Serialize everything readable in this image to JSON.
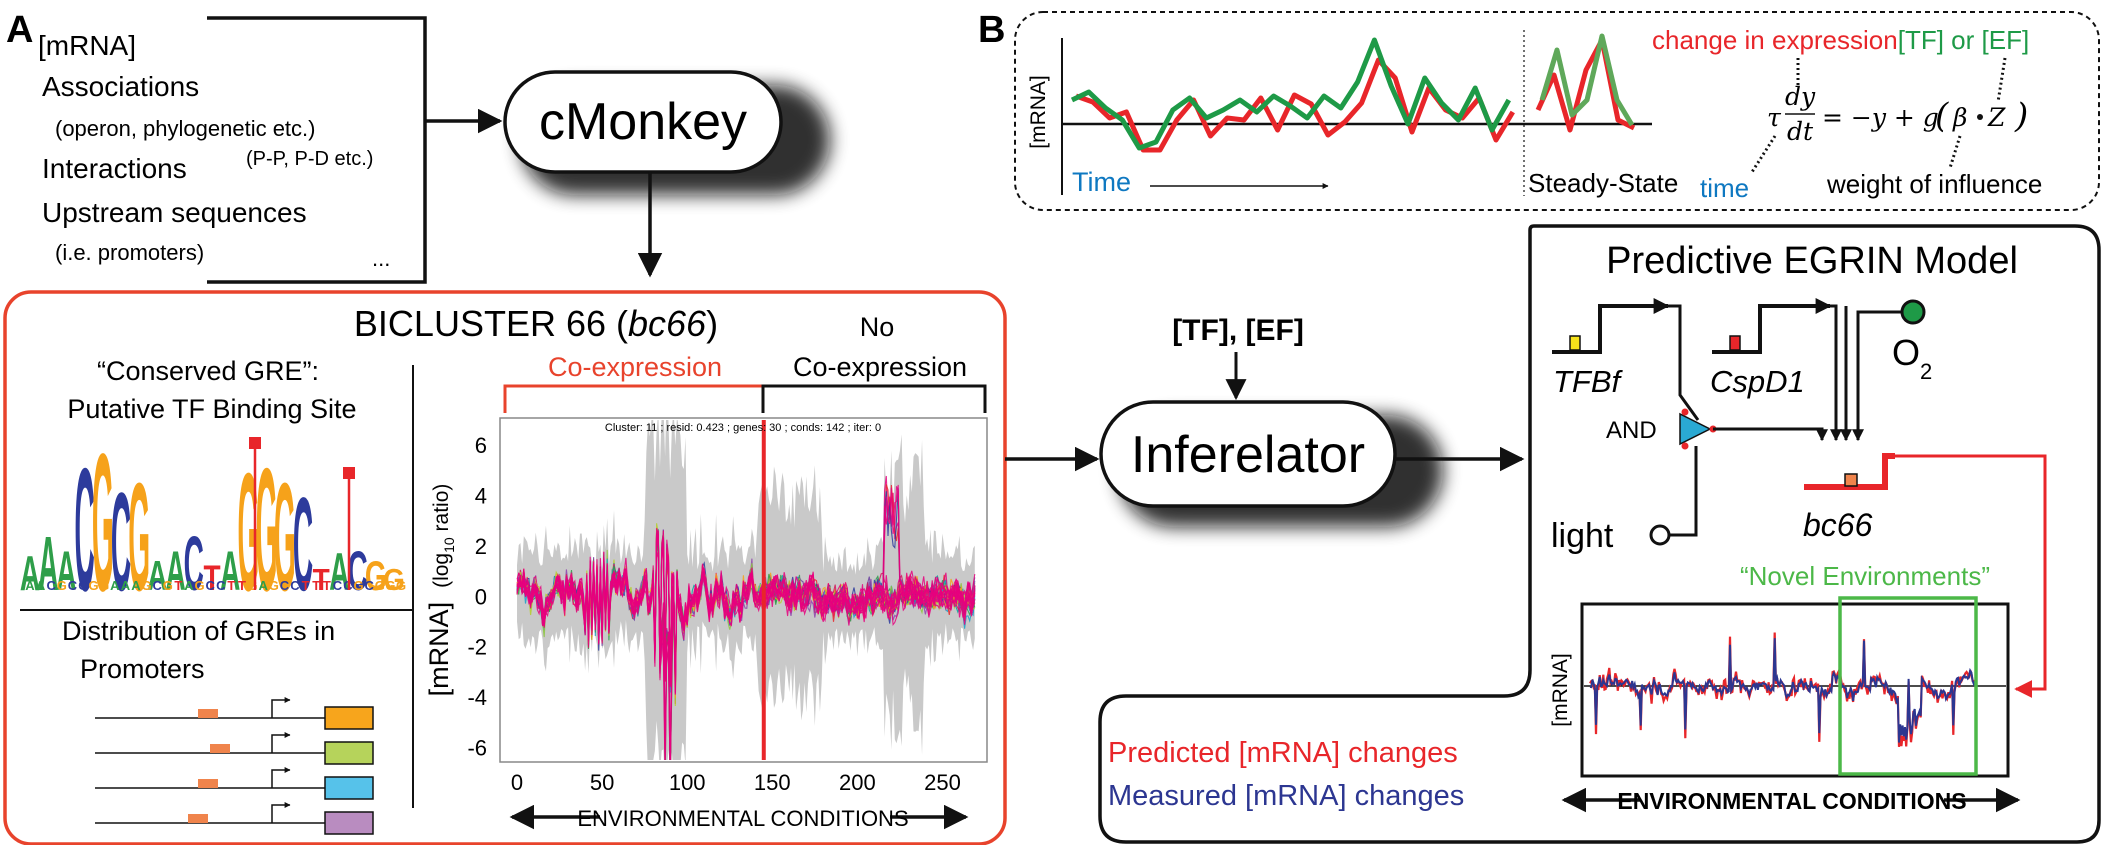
{
  "panel_a": {
    "letter": "A",
    "inputs": {
      "mrna": "[mRNA]",
      "associations": "Associations",
      "associations_detail": "(operon,  phylogenetic etc.)",
      "interactions": "Interactions",
      "interactions_detail": "(P-P, P-D etc.)",
      "upstream": "Upstream sequences",
      "upstream_detail": "(i.e. promoters)",
      "ellipsis": "..."
    },
    "cmonkey": "cMonkey",
    "bicluster": {
      "title_prefix": "BICLUSTER 66 (",
      "title_italic": "bc66",
      "title_suffix": ")",
      "gre_title_line1": "“Conserved GRE”:",
      "gre_title_line2": "Putative TF Binding Site",
      "dist_line1": "Distribution of GREs in",
      "dist_line2": "Promoters",
      "coexpression": "Co-expression",
      "no": "No",
      "no_coexpression": "Co-expression",
      "plot_header": "Cluster: 11 ; resid: 0.423 ; genes: 30 ; conds: 142 ; iter: 0",
      "ylabel_main": "[mRNA]",
      "ylabel_unit_open": "(log",
      "ylabel_unit_sub": "10",
      "ylabel_unit_close": " ratio)",
      "xlabel": "ENVIRONMENTAL CONDITIONS"
    },
    "logo_letters": [
      "A",
      "A",
      "A",
      "C",
      "G",
      "C",
      "G",
      "A",
      "A",
      "C",
      "T",
      "A",
      "G",
      "G",
      "G",
      "C",
      "T",
      "A",
      "C",
      "G",
      "G"
    ],
    "promoter_box_colors": [
      "#f7a51c",
      "#b6d35b",
      "#56c2ea",
      "#b98cc0"
    ],
    "gre_color": "#f0844c"
  },
  "panel_b": {
    "letter": "B",
    "top": {
      "ylabel": "[mRNA]",
      "time": "Time",
      "steady_state": "Steady-State",
      "change_label": "change in expression",
      "tf_label": "[TF]",
      "or_label": " or ",
      "ef_label": "[EF]",
      "time_note": "time",
      "weight_note": "weight of influence",
      "eq_tau": "τ",
      "eq_dy": "dy",
      "eq_dt": "dt",
      "eq_rhs": "= −y + g",
      "eq_beta": "β",
      "eq_z": "Z"
    },
    "inputs_label": "[TF], [EF]",
    "inferelator": "Inferelator",
    "model": {
      "title": "Predictive EGRIN Model",
      "tfbf": "TFBf",
      "cspd1": "CspD1",
      "o2": "O",
      "o2_sub": "2",
      "and_label": "AND",
      "light": "light",
      "bc66": "bc66",
      "novel": "“Novel Environments”",
      "plot_ylabel": "[mRNA]",
      "xlabel": "ENVIRONMENTAL CONDITIONS",
      "predicted": "Predicted [mRNA] changes",
      "measured": "Measured [mRNA] changes"
    },
    "colors": {
      "red": "#e8262a",
      "green": "#1e9a47",
      "blue": "#0e78c1",
      "navy": "#2c3691",
      "novel_green": "#4cb848",
      "and_gate": "#2aa9d3"
    }
  },
  "chart_data": {
    "type": "line",
    "title": "Cluster: 11 ; resid: 0.423 ; genes: 30 ; conds: 142 ; iter: 0",
    "xlabel": "ENVIRONMENTAL CONDITIONS",
    "ylabel": "[mRNA] (log10 ratio)",
    "xlim": [
      -10,
      275
    ],
    "ylim": [
      -6.5,
      7
    ],
    "x_ticks": [
      0,
      50,
      100,
      150,
      200,
      250
    ],
    "y_ticks": [
      -6,
      -4,
      -2,
      0,
      2,
      4,
      6
    ],
    "split_x": 145,
    "regions": [
      {
        "name": "Co-expression",
        "x_range": [
          -10,
          145
        ]
      },
      {
        "name": "No Co-expression",
        "x_range": [
          145,
          275
        ]
      }
    ],
    "series_colors": [
      "#e6007e",
      "#8e44ad",
      "#2d3b9c",
      "#1aa1c9",
      "#2e9e49",
      "#b5cf2a",
      "#f6a21a",
      "#e8262a",
      "#6b3fa0",
      "#00a99d",
      "#d4145a",
      "#8dc63f"
    ]
  }
}
